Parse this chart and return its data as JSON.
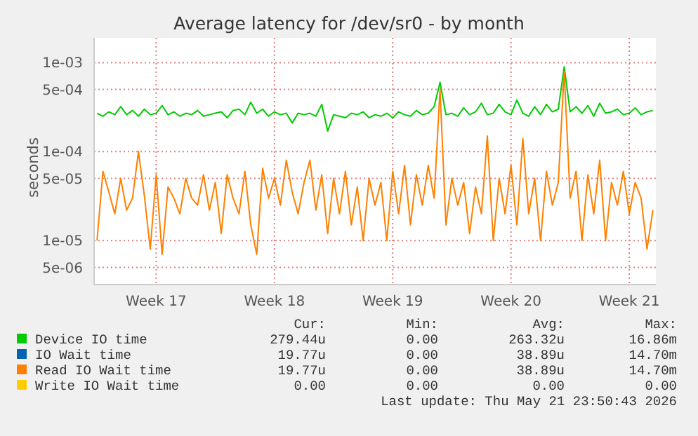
{
  "chart_data": {
    "type": "line",
    "title": "Average latency for /dev/sr0 - by month",
    "ylabel": "seconds",
    "log": "y",
    "grid": true,
    "legend": "bottom",
    "marker": "none",
    "line_style": "solid",
    "ylim": [
      3.2e-06,
      0.0019
    ],
    "yticks": [
      {
        "value": 5e-06,
        "label": "5e-06"
      },
      {
        "value": 1e-05,
        "label": "1e-05"
      },
      {
        "value": 5e-05,
        "label": "5e-05"
      },
      {
        "value": 0.0001,
        "label": "1e-04"
      },
      {
        "value": 0.0005,
        "label": "5e-04"
      },
      {
        "value": 0.001,
        "label": "1e-03"
      }
    ],
    "categories": [
      null,
      null,
      null,
      null,
      null,
      null,
      null,
      null,
      null,
      null,
      "Week 17",
      null,
      null,
      null,
      null,
      null,
      null,
      null,
      null,
      null,
      null,
      null,
      null,
      null,
      null,
      null,
      null,
      null,
      null,
      null,
      "Week 18",
      null,
      null,
      null,
      null,
      null,
      null,
      null,
      null,
      null,
      null,
      null,
      null,
      null,
      null,
      null,
      null,
      null,
      null,
      null,
      "Week 19",
      null,
      null,
      null,
      null,
      null,
      null,
      null,
      null,
      null,
      null,
      null,
      null,
      null,
      null,
      null,
      null,
      null,
      null,
      null,
      "Week 20",
      null,
      null,
      null,
      null,
      null,
      null,
      null,
      null,
      null,
      null,
      null,
      null,
      null,
      null,
      null,
      null,
      null,
      null,
      null,
      "Week 21",
      null,
      null,
      null,
      null
    ],
    "series": [
      {
        "name": "Device IO time",
        "color": "#00cc00",
        "values": [
          0.00027,
          0.00025,
          0.00028,
          0.00026,
          0.00032,
          0.00026,
          0.00029,
          0.00025,
          0.0003,
          0.00026,
          0.00027,
          0.00033,
          0.00026,
          0.00028,
          0.00025,
          0.00027,
          0.00026,
          0.00029,
          0.00025,
          0.00026,
          0.00027,
          0.00028,
          0.00024,
          0.00029,
          0.0003,
          0.00026,
          0.00036,
          0.00027,
          0.0003,
          0.00025,
          0.00028,
          0.00026,
          0.00027,
          0.00021,
          0.00027,
          0.00026,
          0.00027,
          0.00025,
          0.00034,
          0.00017,
          0.00026,
          0.00025,
          0.00024,
          0.00027,
          0.00026,
          0.00028,
          0.00024,
          0.00026,
          0.00025,
          0.00027,
          0.00024,
          0.00028,
          0.00026,
          0.00025,
          0.00029,
          0.00026,
          0.00027,
          0.00032,
          0.0006,
          0.00026,
          0.00027,
          0.00025,
          0.00031,
          0.00026,
          0.00028,
          0.00035,
          0.00026,
          0.00027,
          0.00034,
          0.00028,
          0.00026,
          0.00038,
          0.00027,
          0.00025,
          0.00032,
          0.00026,
          0.00034,
          0.00028,
          0.0003,
          0.0009,
          0.00028,
          0.00032,
          0.00027,
          0.00033,
          0.00025,
          0.00035,
          0.00027,
          0.00028,
          0.0003,
          0.00026,
          0.00027,
          0.00031,
          0.00026,
          0.00028,
          0.00029
        ]
      },
      {
        "name": "IO Wait time",
        "color": "#0066b3",
        "values": [
          null,
          null,
          null,
          null,
          null,
          null,
          null,
          null,
          null,
          null,
          null,
          null,
          null,
          null,
          null,
          null,
          null,
          null,
          null,
          null,
          null,
          null,
          null,
          null,
          null,
          null,
          null,
          null,
          null,
          null,
          null,
          null,
          null,
          null,
          null,
          null,
          null,
          null,
          null,
          null,
          null,
          null,
          null,
          null,
          null,
          null,
          null,
          null,
          null,
          null,
          null,
          null,
          null,
          null,
          null,
          null,
          null,
          null,
          null,
          null,
          null,
          null,
          null,
          null,
          null,
          null,
          null,
          null,
          null,
          null,
          null,
          null,
          null,
          null,
          null,
          null,
          null,
          null,
          null,
          null,
          null,
          null,
          null,
          null,
          null,
          null,
          null,
          null,
          null,
          null,
          null,
          null,
          null,
          null,
          null
        ]
      },
      {
        "name": "Read IO Wait time",
        "color": "#ff8000",
        "values": [
          1e-05,
          6e-05,
          3.5e-05,
          2e-05,
          5e-05,
          2.2e-05,
          3e-05,
          0.0001,
          3.2e-05,
          8e-06,
          5.5e-05,
          7e-06,
          4e-05,
          3e-05,
          2e-05,
          5e-05,
          3e-05,
          2.5e-05,
          5.5e-05,
          2.2e-05,
          4.5e-05,
          1.2e-05,
          5.5e-05,
          3e-05,
          2e-05,
          6e-05,
          1.5e-05,
          7e-06,
          6.5e-05,
          3e-05,
          5e-05,
          2.5e-05,
          8e-05,
          3.5e-05,
          2e-05,
          4.5e-05,
          8e-05,
          2.2e-05,
          5.5e-05,
          1.2e-05,
          5e-05,
          2e-05,
          6e-05,
          1.5e-05,
          4e-05,
          1e-05,
          5e-05,
          2.5e-05,
          4.5e-05,
          1e-05,
          6e-05,
          2e-05,
          7e-05,
          1.5e-05,
          5.5e-05,
          2.5e-05,
          7e-05,
          3e-05,
          0.0005,
          1.5e-05,
          5e-05,
          2.5e-05,
          4.5e-05,
          1.2e-05,
          4e-05,
          2e-05,
          0.00015,
          1e-05,
          5e-05,
          2e-05,
          7e-05,
          1.5e-05,
          0.00014,
          2e-05,
          5e-05,
          1e-05,
          6e-05,
          2.5e-05,
          4.5e-05,
          0.0008,
          3e-05,
          6e-05,
          1e-05,
          5.5e-05,
          2e-05,
          8e-05,
          1e-05,
          4.5e-05,
          2.5e-05,
          6e-05,
          2e-05,
          4.5e-05,
          3e-05,
          8e-06,
          2.2e-05
        ]
      },
      {
        "name": "Write IO Wait time",
        "color": "#ffcc00",
        "values": [
          null,
          null,
          null,
          null,
          null,
          null,
          null,
          null,
          null,
          null,
          null,
          null,
          null,
          null,
          null,
          null,
          null,
          null,
          null,
          null,
          null,
          null,
          null,
          null,
          null,
          null,
          null,
          null,
          null,
          null,
          null,
          null,
          null,
          null,
          null,
          null,
          null,
          null,
          null,
          null,
          null,
          null,
          null,
          null,
          null,
          null,
          null,
          null,
          null,
          null,
          null,
          null,
          null,
          null,
          null,
          null,
          null,
          null,
          null,
          null,
          null,
          null,
          null,
          null,
          null,
          null,
          null,
          null,
          null,
          null,
          null,
          null,
          null,
          null,
          null,
          null,
          null,
          null,
          null,
          null,
          null,
          null,
          null,
          null,
          null,
          null,
          null,
          null,
          null,
          null,
          null,
          null,
          null,
          null,
          null
        ]
      }
    ],
    "annotations": [
      "Cur:",
      "Min:",
      "Avg:",
      "Max:",
      "279.44u",
      "0.00",
      "263.32u",
      "16.86m",
      "19.77u",
      "0.00",
      "38.89u",
      "14.70m",
      "19.77u",
      "0.00",
      "38.89u",
      "14.70m",
      "0.00",
      "0.00",
      "0.00",
      "0.00",
      "Last update: Thu May 21 23:50:43 2026"
    ]
  }
}
